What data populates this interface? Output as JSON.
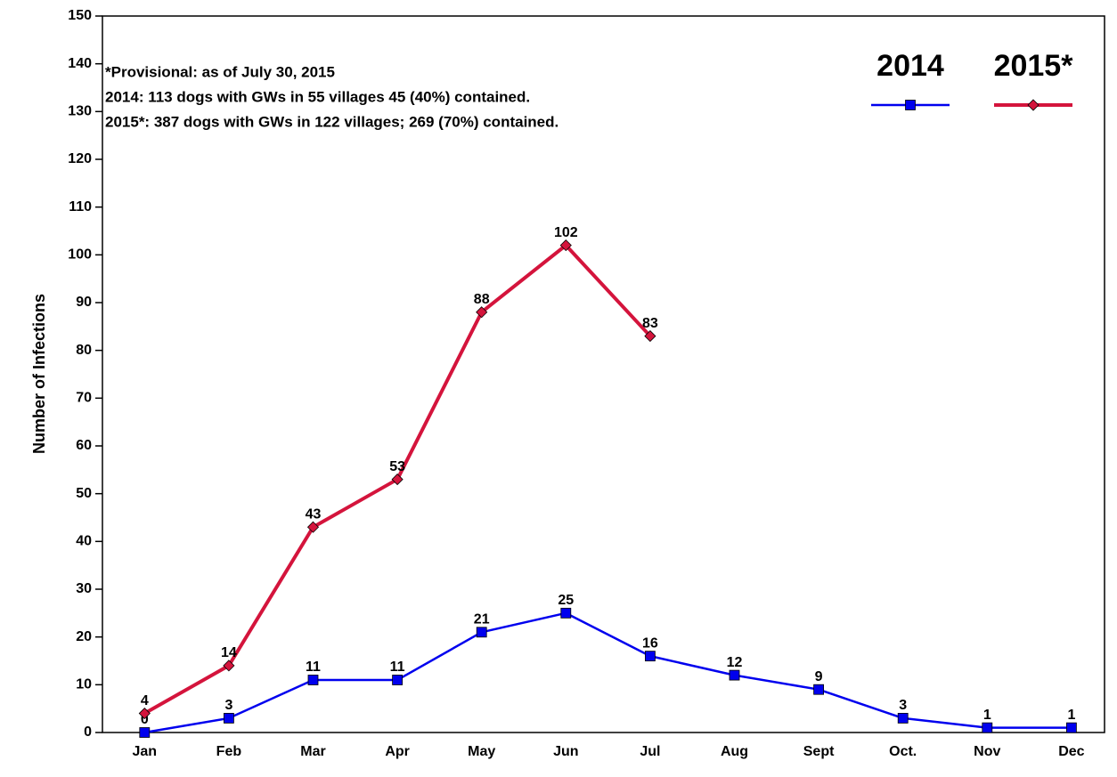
{
  "chart_data": {
    "type": "line",
    "ylabel": "Number of Infections",
    "annotations": [
      "*Provisional: as of July 30, 2015",
      "2014: 113 dogs with GWs in 55 villages 45 (40%) contained.",
      "2015*: 387 dogs with GWs in 122 villages; 269 (70%) contained."
    ],
    "categories": [
      "Jan",
      "Feb",
      "Mar",
      "Apr",
      "May",
      "Jun",
      "Jul",
      "Aug",
      "Sept",
      "Oct.",
      "Nov",
      "Dec"
    ],
    "series": [
      {
        "name": "2014",
        "color": "#0000ee",
        "marker": "square",
        "values": [
          0,
          3,
          11,
          11,
          21,
          25,
          16,
          12,
          9,
          3,
          1,
          1
        ]
      },
      {
        "name": "2015*",
        "color": "#d4143c",
        "marker": "diamond",
        "values": [
          4,
          14,
          43,
          53,
          88,
          102,
          83,
          null,
          null,
          null,
          null,
          null
        ]
      }
    ],
    "ylim": [
      0,
      150
    ],
    "yticks": [
      0,
      10,
      20,
      30,
      40,
      50,
      60,
      70,
      80,
      90,
      100,
      110,
      120,
      130,
      140,
      150
    ],
    "legend": "top-right"
  }
}
